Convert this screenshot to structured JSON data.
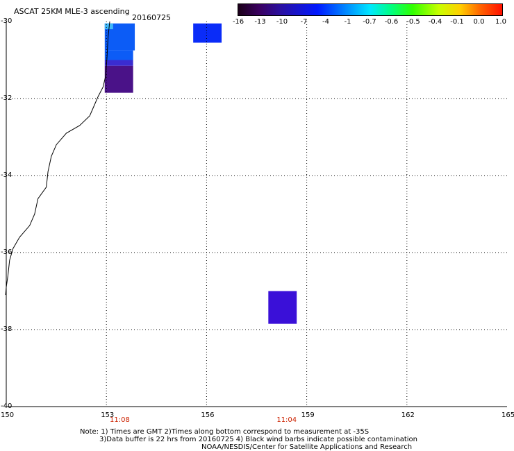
{
  "header": {
    "title": "ASCAT 25KM MLE-3 ascending",
    "date": "20160725"
  },
  "colorbar": {
    "labels": [
      "-16",
      "-13",
      "-10",
      "-7",
      "-4",
      "-1",
      "-0.7",
      "-0.6",
      "-0.5",
      "-0.4",
      "-0.1",
      "0.0",
      "1.0"
    ]
  },
  "map": {
    "lat_labels": [
      "-30",
      "-32",
      "-34",
      "-36",
      "-38",
      "-40"
    ],
    "lon_labels": [
      "150",
      "153",
      "156",
      "159",
      "162",
      "165"
    ],
    "time_labels": [
      {
        "text": "11:08",
        "lon": 153.4
      },
      {
        "text": "11:04",
        "lon": 158.4
      }
    ],
    "data_cells": [
      {
        "lon_min": 152.95,
        "lon_max": 153.85,
        "lat_min": -30.75,
        "lat_max": -30.05,
        "color": "#0c5cf6"
      },
      {
        "lon_min": 152.95,
        "lon_max": 153.2,
        "lat_min": -30.2,
        "lat_max": -30.05,
        "color": "#40b8f8"
      },
      {
        "lon_min": 152.95,
        "lon_max": 153.8,
        "lat_min": -31.0,
        "lat_max": -30.75,
        "color": "#0c5cf6"
      },
      {
        "lon_min": 152.95,
        "lon_max": 153.8,
        "lat_min": -31.15,
        "lat_max": -31.0,
        "color": "#3a2cd0"
      },
      {
        "lon_min": 152.95,
        "lon_max": 153.8,
        "lat_min": -31.85,
        "lat_max": -31.15,
        "color": "#4a1288"
      },
      {
        "lon_min": 155.6,
        "lon_max": 156.45,
        "lat_min": -30.55,
        "lat_max": -30.05,
        "color": "#0a2cf8"
      },
      {
        "lon_min": 157.85,
        "lon_max": 158.7,
        "lat_min": -37.85,
        "lat_max": -37.0,
        "color": "#3a10d8"
      }
    ]
  },
  "notes": {
    "line1": "Note: 1) Times are GMT 2)Times along bottom correspond to measurement at -35S",
    "line2": "3)Data buffer is 22 hrs from 20160725 4) Black wind barbs indicate possible contamination",
    "line3": "NOAA/NESDIS/Center for Satellite Applications and Research"
  }
}
